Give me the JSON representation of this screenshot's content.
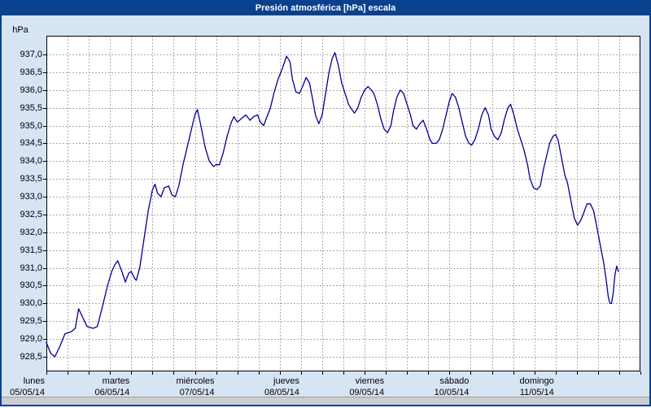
{
  "window": {
    "title_bar": {
      "label": "Presión atmosférica [hPa] escala",
      "bg_color": "#0a418f",
      "text_color": "#ffffff"
    },
    "background_color": "#d6e4f3",
    "border_color": "#0a418f"
  },
  "chart_data": {
    "type": "line",
    "title": "Presión atmosférica [hPa] escala",
    "ylabel": "hPa",
    "plot_bg": "#ffffff",
    "grid": {
      "color": "#ababab",
      "style": "dashed"
    },
    "y_axis": {
      "min": 928.5,
      "max": 937.0,
      "step": 0.5,
      "tick_labels": [
        "937,0",
        "936,5",
        "936,0",
        "935,5",
        "935,0",
        "934,5",
        "934,0",
        "933,5",
        "933,0",
        "932,5",
        "932,0",
        "931,5",
        "931,0",
        "930,5",
        "930,0",
        "929,5",
        "929,0",
        "928,5"
      ]
    },
    "x_axis": {
      "range_days": [
        0,
        7
      ],
      "minor_gridlines_per_day": 4,
      "days": [
        {
          "name": "lunes",
          "date": "05/05/14"
        },
        {
          "name": "martes",
          "date": "06/05/14"
        },
        {
          "name": "miércoles",
          "date": "07/05/14"
        },
        {
          "name": "jueves",
          "date": "08/05/14"
        },
        {
          "name": "viernes",
          "date": "09/05/14"
        },
        {
          "name": "sábado",
          "date": "10/05/14"
        },
        {
          "name": "domingo",
          "date": "11/05/14"
        }
      ]
    },
    "series": [
      {
        "name": "Presión atmosférica",
        "color": "#000099",
        "points": [
          [
            0.0,
            928.9
          ],
          [
            0.05,
            928.6
          ],
          [
            0.1,
            928.5
          ],
          [
            0.16,
            928.8
          ],
          [
            0.22,
            929.15
          ],
          [
            0.29,
            929.2
          ],
          [
            0.34,
            929.3
          ],
          [
            0.38,
            929.85
          ],
          [
            0.43,
            929.6
          ],
          [
            0.48,
            929.35
          ],
          [
            0.55,
            929.3
          ],
          [
            0.6,
            929.35
          ],
          [
            0.66,
            929.9
          ],
          [
            0.72,
            930.5
          ],
          [
            0.77,
            930.9
          ],
          [
            0.81,
            931.1
          ],
          [
            0.84,
            931.2
          ],
          [
            0.89,
            930.9
          ],
          [
            0.93,
            930.6
          ],
          [
            0.97,
            930.85
          ],
          [
            1.0,
            930.9
          ],
          [
            1.04,
            930.7
          ],
          [
            1.06,
            930.65
          ],
          [
            1.1,
            931.0
          ],
          [
            1.15,
            931.8
          ],
          [
            1.2,
            932.6
          ],
          [
            1.25,
            933.2
          ],
          [
            1.28,
            933.35
          ],
          [
            1.31,
            933.1
          ],
          [
            1.35,
            933.0
          ],
          [
            1.39,
            933.25
          ],
          [
            1.44,
            933.3
          ],
          [
            1.48,
            933.05
          ],
          [
            1.52,
            933.0
          ],
          [
            1.56,
            933.3
          ],
          [
            1.61,
            933.9
          ],
          [
            1.66,
            934.4
          ],
          [
            1.71,
            934.9
          ],
          [
            1.75,
            935.3
          ],
          [
            1.78,
            935.45
          ],
          [
            1.82,
            935.0
          ],
          [
            1.87,
            934.4
          ],
          [
            1.92,
            934.0
          ],
          [
            1.97,
            933.85
          ],
          [
            2.0,
            933.9
          ],
          [
            2.04,
            933.9
          ],
          [
            2.08,
            934.2
          ],
          [
            2.13,
            934.7
          ],
          [
            2.18,
            935.1
          ],
          [
            2.21,
            935.25
          ],
          [
            2.25,
            935.1
          ],
          [
            2.3,
            935.2
          ],
          [
            2.35,
            935.3
          ],
          [
            2.4,
            935.15
          ],
          [
            2.44,
            935.25
          ],
          [
            2.49,
            935.3
          ],
          [
            2.52,
            935.1
          ],
          [
            2.56,
            935.0
          ],
          [
            2.6,
            935.25
          ],
          [
            2.64,
            935.5
          ],
          [
            2.68,
            935.9
          ],
          [
            2.73,
            936.3
          ],
          [
            2.78,
            936.6
          ],
          [
            2.83,
            936.95
          ],
          [
            2.87,
            936.8
          ],
          [
            2.9,
            936.3
          ],
          [
            2.94,
            935.95
          ],
          [
            2.98,
            935.9
          ],
          [
            3.02,
            936.1
          ],
          [
            3.06,
            936.35
          ],
          [
            3.1,
            936.2
          ],
          [
            3.14,
            935.7
          ],
          [
            3.17,
            935.3
          ],
          [
            3.21,
            935.05
          ],
          [
            3.25,
            935.3
          ],
          [
            3.29,
            935.9
          ],
          [
            3.33,
            936.5
          ],
          [
            3.37,
            936.9
          ],
          [
            3.4,
            937.05
          ],
          [
            3.44,
            936.7
          ],
          [
            3.48,
            936.2
          ],
          [
            3.52,
            935.9
          ],
          [
            3.56,
            935.6
          ],
          [
            3.6,
            935.45
          ],
          [
            3.63,
            935.35
          ],
          [
            3.67,
            935.5
          ],
          [
            3.71,
            935.8
          ],
          [
            3.75,
            936.0
          ],
          [
            3.79,
            936.1
          ],
          [
            3.83,
            936.0
          ],
          [
            3.86,
            935.9
          ],
          [
            3.9,
            935.6
          ],
          [
            3.94,
            935.2
          ],
          [
            3.98,
            934.9
          ],
          [
            4.02,
            934.8
          ],
          [
            4.06,
            935.0
          ],
          [
            4.09,
            935.4
          ],
          [
            4.13,
            935.8
          ],
          [
            4.17,
            936.0
          ],
          [
            4.21,
            935.9
          ],
          [
            4.25,
            935.6
          ],
          [
            4.29,
            935.3
          ],
          [
            4.32,
            935.0
          ],
          [
            4.36,
            934.9
          ],
          [
            4.4,
            935.05
          ],
          [
            4.44,
            935.15
          ],
          [
            4.48,
            934.9
          ],
          [
            4.52,
            934.6
          ],
          [
            4.55,
            934.5
          ],
          [
            4.59,
            934.5
          ],
          [
            4.63,
            934.6
          ],
          [
            4.67,
            934.9
          ],
          [
            4.71,
            935.3
          ],
          [
            4.75,
            935.7
          ],
          [
            4.78,
            935.9
          ],
          [
            4.82,
            935.8
          ],
          [
            4.86,
            935.5
          ],
          [
            4.9,
            935.1
          ],
          [
            4.94,
            934.7
          ],
          [
            4.98,
            934.5
          ],
          [
            5.01,
            934.45
          ],
          [
            5.05,
            934.6
          ],
          [
            5.09,
            934.9
          ],
          [
            5.13,
            935.3
          ],
          [
            5.17,
            935.5
          ],
          [
            5.21,
            935.3
          ],
          [
            5.24,
            934.9
          ],
          [
            5.28,
            934.7
          ],
          [
            5.32,
            934.6
          ],
          [
            5.36,
            934.8
          ],
          [
            5.4,
            935.2
          ],
          [
            5.44,
            935.5
          ],
          [
            5.47,
            935.6
          ],
          [
            5.51,
            935.3
          ],
          [
            5.55,
            934.9
          ],
          [
            5.59,
            934.6
          ],
          [
            5.63,
            934.3
          ],
          [
            5.67,
            933.9
          ],
          [
            5.7,
            933.5
          ],
          [
            5.74,
            933.25
          ],
          [
            5.78,
            933.2
          ],
          [
            5.82,
            933.3
          ],
          [
            5.86,
            933.8
          ],
          [
            5.9,
            934.2
          ],
          [
            5.93,
            934.5
          ],
          [
            5.97,
            934.7
          ],
          [
            6.0,
            934.75
          ],
          [
            6.03,
            934.6
          ],
          [
            6.07,
            934.1
          ],
          [
            6.11,
            933.6
          ],
          [
            6.14,
            933.4
          ],
          [
            6.18,
            932.9
          ],
          [
            6.22,
            932.4
          ],
          [
            6.26,
            932.2
          ],
          [
            6.3,
            932.35
          ],
          [
            6.34,
            932.6
          ],
          [
            6.37,
            932.8
          ],
          [
            6.41,
            932.8
          ],
          [
            6.45,
            932.6
          ],
          [
            6.49,
            932.1
          ],
          [
            6.53,
            931.6
          ],
          [
            6.57,
            931.1
          ],
          [
            6.6,
            930.6
          ],
          [
            6.62,
            930.2
          ],
          [
            6.64,
            930.0
          ],
          [
            6.66,
            930.0
          ],
          [
            6.68,
            930.3
          ],
          [
            6.7,
            930.8
          ],
          [
            6.72,
            931.05
          ],
          [
            6.74,
            930.9
          ]
        ]
      }
    ]
  }
}
